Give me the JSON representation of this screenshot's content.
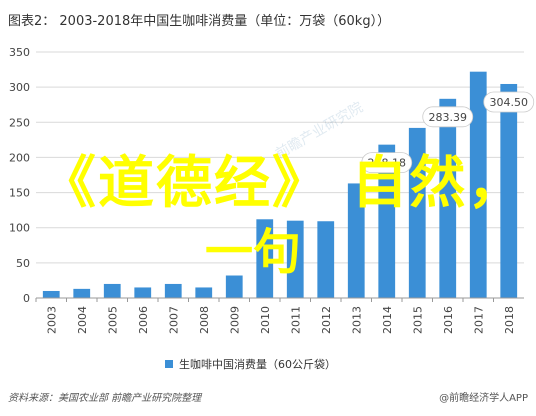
{
  "header": {
    "title": "图表2：  2003-2018年中国生咖啡消费量（单位：万袋（60kg））"
  },
  "chart_data": {
    "type": "bar",
    "categories": [
      "2003",
      "2004",
      "2005",
      "2006",
      "2007",
      "2008",
      "2009",
      "2010",
      "2011",
      "2012",
      "2013",
      "2014",
      "2015",
      "2016",
      "2017",
      "2018"
    ],
    "series": [
      {
        "name": "生咖啡中国消费量（60公斤袋）",
        "values": [
          10,
          13,
          20,
          15,
          20,
          15,
          32,
          112,
          110,
          109.2,
          163,
          218.18,
          242,
          283.39,
          322,
          304.5
        ]
      }
    ],
    "data_labels": [
      {
        "index": 11,
        "text": "218.18"
      },
      {
        "index": 13,
        "text": "283.39"
      },
      {
        "index": 15,
        "text": "304.50"
      }
    ],
    "ylim": [
      0,
      350
    ],
    "yticks": [
      0,
      50,
      100,
      150,
      200,
      250,
      300,
      350
    ],
    "grid": true,
    "legend_position": "bottom",
    "colors": {
      "bar": "#3b8fd6",
      "label_bg": "#ffffff"
    }
  },
  "legend": {
    "label": "生咖啡中国消费量（60公斤袋）"
  },
  "footer": {
    "source": "资料来源：美国农业部 前瞻产业研究院整理",
    "credit": "@前瞻经济学人APP"
  },
  "watermark": {
    "line1": "《道德经》 自然，",
    "line2": "一句"
  }
}
